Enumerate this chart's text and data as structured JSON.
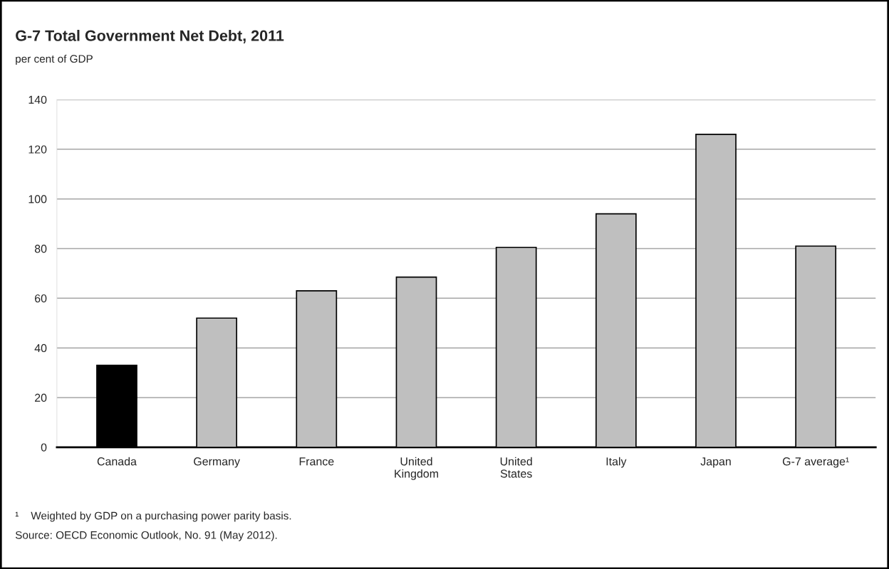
{
  "chart_data": {
    "type": "bar",
    "title": "G-7 Total Government Net Debt, 2011",
    "ylabel": "per cent of GDP",
    "categories": [
      "Canada",
      "Germany",
      "France",
      "United\nKingdom",
      "United\nStates",
      "Italy",
      "Japan",
      "G-7 average¹"
    ],
    "values": [
      33,
      52,
      63,
      68.5,
      80.5,
      94,
      126,
      81
    ],
    "colors": [
      "#000000",
      "#bfbfbf",
      "#bfbfbf",
      "#bfbfbf",
      "#bfbfbf",
      "#bfbfbf",
      "#bfbfbf",
      "#bfbfbf"
    ],
    "ylim": [
      0,
      140
    ],
    "yticks": [
      0,
      20,
      40,
      60,
      80,
      100,
      120,
      140
    ],
    "grid": "y",
    "annotations": [
      "¹    Weighted by GDP on a purchasing power parity basis.",
      "Source: OECD Economic Outlook, No. 91 (May 2012)."
    ]
  }
}
